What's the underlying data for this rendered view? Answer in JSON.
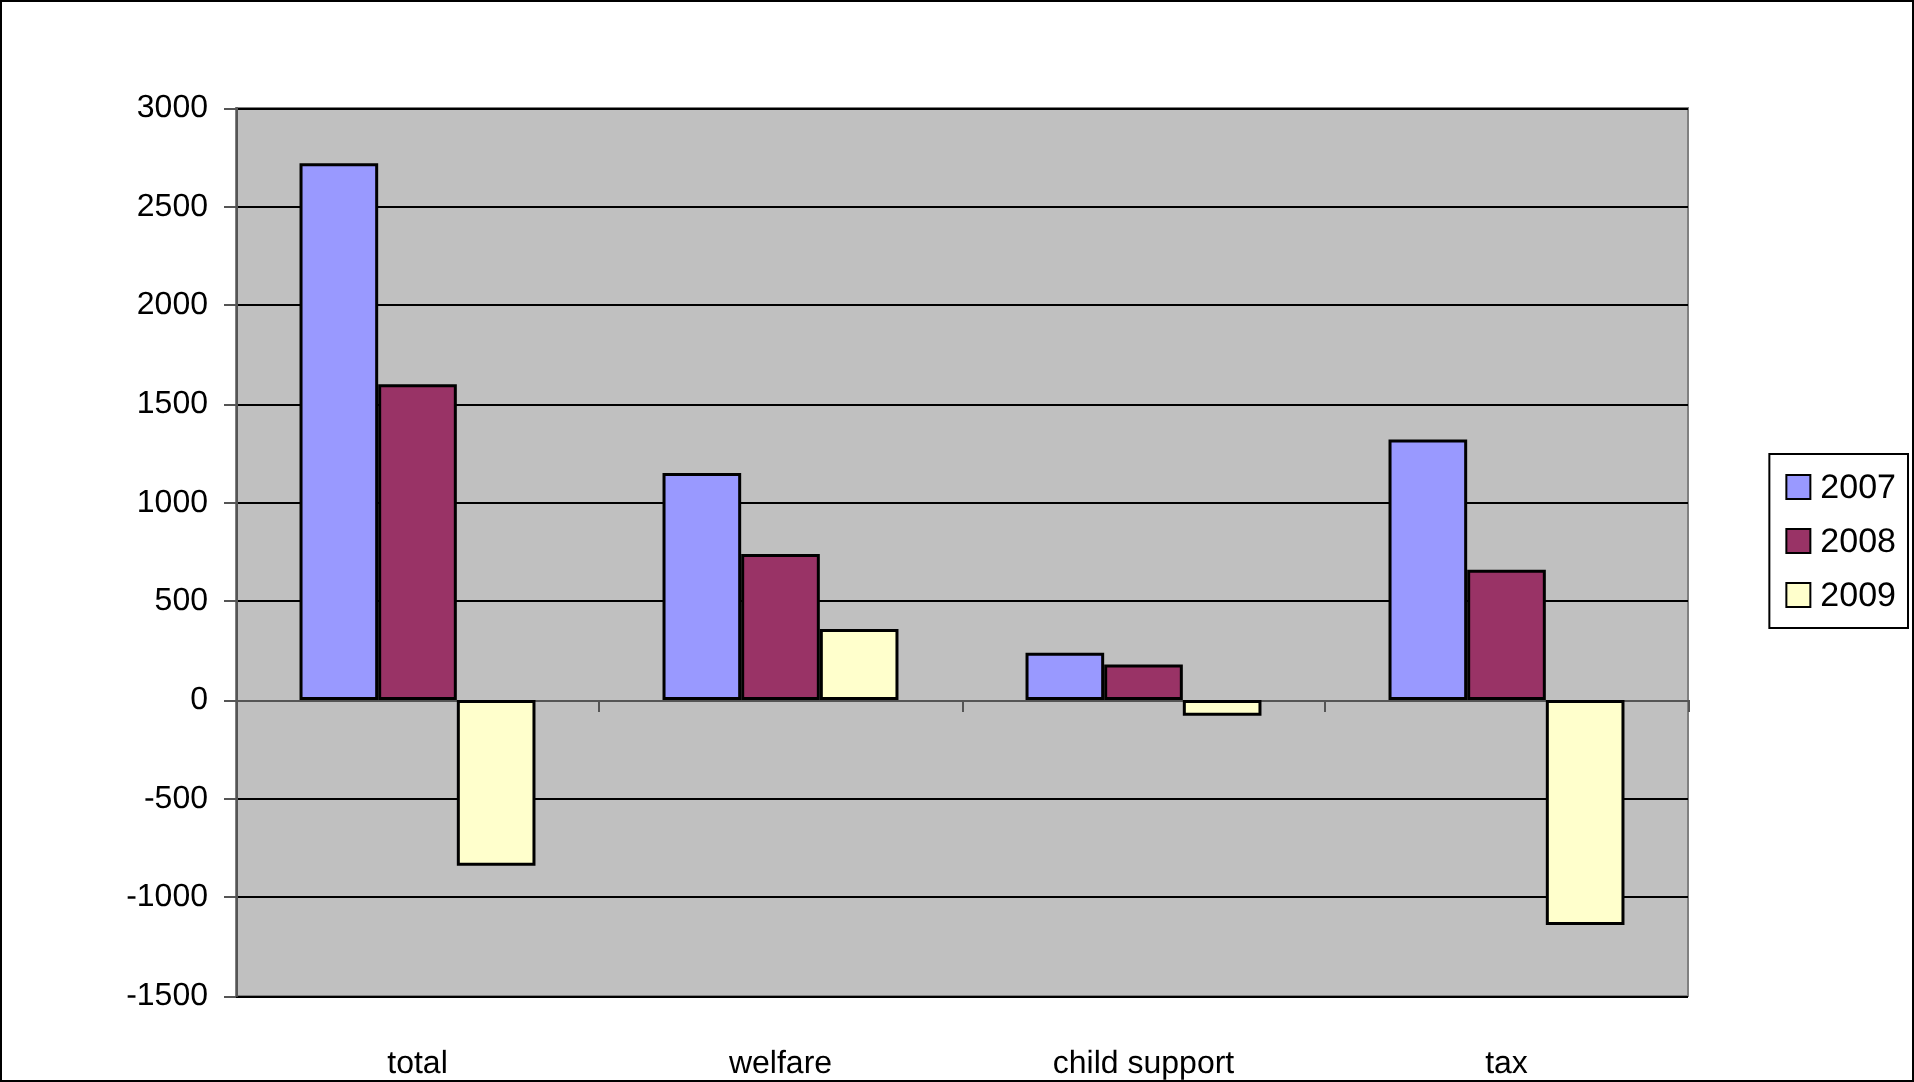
{
  "chart_data": {
    "type": "bar",
    "categories": [
      "total",
      "welfare",
      "child support",
      "tax"
    ],
    "series": [
      {
        "name": "2007",
        "color": "#9999ff",
        "values": [
          2720,
          1150,
          240,
          1320
        ]
      },
      {
        "name": "2008",
        "color": "#993366",
        "values": [
          1600,
          740,
          180,
          660
        ]
      },
      {
        "name": "2009",
        "color": "#ffffcc",
        "values": [
          -840,
          360,
          -80,
          -1140
        ]
      }
    ],
    "ylim": [
      -1500,
      3000
    ],
    "yticks": [
      -1500,
      -1000,
      -500,
      0,
      500,
      1000,
      1500,
      2000,
      2500,
      3000
    ],
    "grid": "y",
    "legend": "right"
  }
}
